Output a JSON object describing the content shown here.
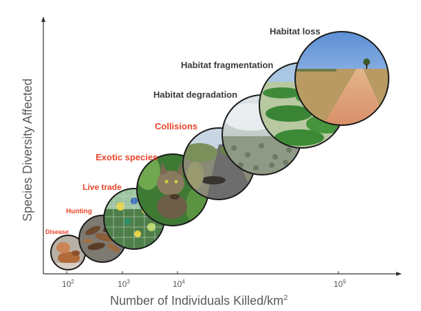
{
  "y_axis_title": "Species Diversity Affected",
  "x_axis_title": "Number of Individuals Killed/km",
  "x_axis_superscript": "2",
  "x_ticks": [
    {
      "base": "10",
      "exp": "2"
    },
    {
      "base": "10",
      "exp": "3"
    },
    {
      "base": "10",
      "exp": "4"
    },
    {
      "base": "10",
      "exp": "9"
    }
  ],
  "threats": [
    {
      "label": "Disease",
      "color": "#e8452a"
    },
    {
      "label": "Hunting",
      "color": "#e8452a"
    },
    {
      "label": "Live trade",
      "color": "#e8452a"
    },
    {
      "label": "Exotic species",
      "color": "#e8452a"
    },
    {
      "label": "Collisions",
      "color": "#e8452a"
    },
    {
      "label": "Habitat degradation",
      "color": "#3a3a3a"
    },
    {
      "label": "Habitat fragmentation",
      "color": "#3a3a3a"
    },
    {
      "label": "Habitat loss",
      "color": "#3a3a3a"
    }
  ]
}
